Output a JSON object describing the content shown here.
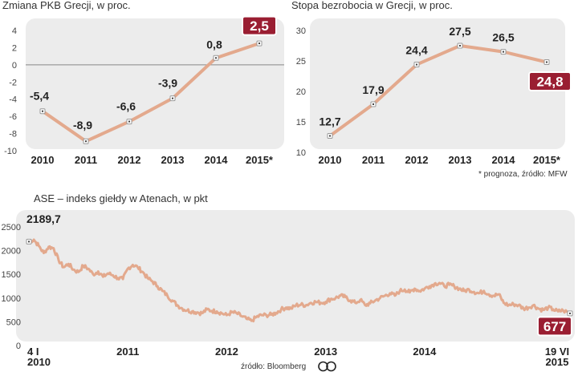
{
  "colors": {
    "line": "#e3a98d",
    "panel": "#ececec",
    "highlight": "#9a1e32",
    "zero": "#888888"
  },
  "notes": {
    "prognoza": "* prognoza, źródło: MFW",
    "zrodlo": "źródło: Bloomberg",
    "logo": "CP"
  },
  "chart_data": [
    {
      "type": "line",
      "title": "Zmiana PKB Grecji, w proc.",
      "categories": [
        "2010",
        "2011",
        "2012",
        "2013",
        "2014",
        "2015*"
      ],
      "values": [
        -5.4,
        -8.9,
        -6.6,
        -3.9,
        0.8,
        2.5
      ],
      "value_labels": [
        "-5,4",
        "-8,9",
        "-6,6",
        "-3,9",
        "0,8",
        "2,5"
      ],
      "highlight_index": 5,
      "ylim": [
        -10,
        4
      ],
      "yticks": [
        4,
        2,
        0,
        -2,
        -4,
        -6,
        -8,
        -10
      ],
      "ytick_labels": [
        "4",
        "2",
        "0",
        "-2",
        "-4",
        "-6",
        "-8",
        "-10"
      ]
    },
    {
      "type": "line",
      "title": "Stopa bezrobocia w Grecji, w proc.",
      "categories": [
        "2010",
        "2011",
        "2012",
        "2013",
        "2014",
        "2015*"
      ],
      "values": [
        12.7,
        17.9,
        24.4,
        27.5,
        26.5,
        24.8
      ],
      "value_labels": [
        "12,7",
        "17,9",
        "24,4",
        "27,5",
        "26,5",
        "24,8"
      ],
      "highlight_index": 5,
      "ylim": [
        10,
        30
      ],
      "yticks": [
        30,
        25,
        20,
        15,
        10
      ],
      "ytick_labels": [
        "30",
        "25",
        "20",
        "15",
        "10"
      ]
    },
    {
      "type": "line",
      "title": "ASE – indeks giełdy w Atenach, w pkt",
      "x_tick_labels": [
        [
          "4 I",
          "2010"
        ],
        [
          "2011"
        ],
        [
          "2012"
        ],
        [
          "2013"
        ],
        [
          "2014"
        ],
        [
          "19 VI",
          "2015"
        ]
      ],
      "x_tick_years": [
        2010.0,
        2011.0,
        2012.0,
        2013.0,
        2014.0,
        2015.47
      ],
      "start_label": "2189,7",
      "start_value": 2189.7,
      "end_label": "677",
      "end_value": 677,
      "ylim": [
        0,
        2500
      ],
      "yticks": [
        2500,
        2000,
        1500,
        1000,
        500,
        0
      ],
      "ytick_labels": [
        "2500",
        "2000",
        "1500",
        "1000",
        "500",
        "0"
      ],
      "x": [
        2010.0,
        2010.05,
        2010.1,
        2010.15,
        2010.2,
        2010.25,
        2010.3,
        2010.35,
        2010.4,
        2010.45,
        2010.5,
        2010.55,
        2010.6,
        2010.65,
        2010.7,
        2010.75,
        2010.8,
        2010.85,
        2010.9,
        2010.95,
        2011.0,
        2011.05,
        2011.1,
        2011.15,
        2011.2,
        2011.25,
        2011.3,
        2011.35,
        2011.4,
        2011.45,
        2011.5,
        2011.55,
        2011.6,
        2011.65,
        2011.7,
        2011.75,
        2011.8,
        2011.85,
        2011.9,
        2011.95,
        2012.0,
        2012.05,
        2012.1,
        2012.15,
        2012.2,
        2012.25,
        2012.3,
        2012.35,
        2012.4,
        2012.45,
        2012.5,
        2012.55,
        2012.6,
        2012.65,
        2012.7,
        2012.75,
        2012.8,
        2012.85,
        2012.9,
        2012.95,
        2013.0,
        2013.05,
        2013.1,
        2013.15,
        2013.2,
        2013.25,
        2013.3,
        2013.35,
        2013.4,
        2013.45,
        2013.5,
        2013.55,
        2013.6,
        2013.65,
        2013.7,
        2013.75,
        2013.8,
        2013.85,
        2013.9,
        2013.95,
        2014.0,
        2014.05,
        2014.1,
        2014.15,
        2014.2,
        2014.25,
        2014.3,
        2014.35,
        2014.4,
        2014.45,
        2014.5,
        2014.55,
        2014.6,
        2014.65,
        2014.7,
        2014.75,
        2014.8,
        2014.85,
        2014.9,
        2014.95,
        2015.0,
        2015.05,
        2015.1,
        2015.15,
        2015.2,
        2015.25,
        2015.3,
        2015.35,
        2015.4,
        2015.47
      ],
      "values": [
        2190,
        2230,
        2100,
        1950,
        2080,
        2050,
        1800,
        1650,
        1720,
        1600,
        1550,
        1680,
        1620,
        1500,
        1560,
        1450,
        1520,
        1480,
        1420,
        1400,
        1620,
        1700,
        1650,
        1550,
        1420,
        1350,
        1250,
        1150,
        1050,
        950,
        850,
        780,
        740,
        720,
        700,
        680,
        760,
        730,
        720,
        680,
        640,
        700,
        680,
        620,
        560,
        520,
        600,
        640,
        640,
        650,
        690,
        760,
        800,
        780,
        850,
        860,
        850,
        900,
        920,
        900,
        920,
        980,
        1000,
        1050,
        1020,
        950,
        900,
        960,
        850,
        890,
        950,
        1000,
        1050,
        1100,
        1050,
        1150,
        1180,
        1120,
        1200,
        1150,
        1200,
        1250,
        1300,
        1320,
        1250,
        1280,
        1250,
        1200,
        1150,
        1180,
        1130,
        1100,
        1150,
        1080,
        1050,
        1080,
        900,
        850,
        870,
        850,
        780,
        800,
        850,
        780,
        750,
        800,
        760,
        720,
        740,
        677
      ]
    }
  ]
}
